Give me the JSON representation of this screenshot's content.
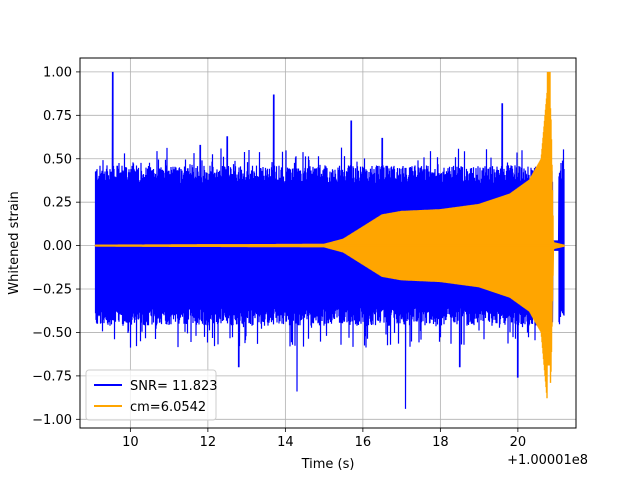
{
  "chart_data": {
    "type": "line",
    "title": "",
    "xlabel": "Time (s)",
    "ylabel": "Whitened strain",
    "x_offset_label": "+1.00001e8",
    "xlim": [
      8.7,
      21.5
    ],
    "ylim": [
      -1.05,
      1.08
    ],
    "x_ticks": [
      10,
      12,
      14,
      16,
      18,
      20
    ],
    "y_ticks": [
      -1.0,
      -0.75,
      -0.5,
      -0.25,
      0.0,
      0.25,
      0.5,
      0.75,
      1.0
    ],
    "x_tick_labels": [
      "10",
      "12",
      "14",
      "16",
      "18",
      "20"
    ],
    "y_tick_labels": [
      "−1.00",
      "−0.75",
      "−0.50",
      "−0.25",
      "0.00",
      "0.25",
      "0.50",
      "0.75",
      "1.00"
    ],
    "grid": true,
    "legend_position": "lower-left",
    "series": [
      {
        "name": "SNR= 11.823",
        "color": "#0000ff",
        "kind": "noise",
        "x_range": [
          9.1,
          21.2
        ],
        "typical_envelope": 0.42,
        "peaks": [
          {
            "x": 9.55,
            "y": 1.0
          },
          {
            "x": 9.15,
            "y": -0.45
          },
          {
            "x": 11.8,
            "y": 0.58
          },
          {
            "x": 12.5,
            "y": 0.63
          },
          {
            "x": 12.8,
            "y": -0.7
          },
          {
            "x": 13.7,
            "y": 0.87
          },
          {
            "x": 14.3,
            "y": -0.84
          },
          {
            "x": 15.7,
            "y": 0.72
          },
          {
            "x": 17.1,
            "y": -0.94
          },
          {
            "x": 19.6,
            "y": 0.82
          },
          {
            "x": 20.0,
            "y": -0.76
          },
          {
            "x": 16.5,
            "y": 0.62
          },
          {
            "x": 18.5,
            "y": -0.7
          }
        ],
        "gap": [
          20.9,
          21.05
        ]
      },
      {
        "name": "cm=6.0542",
        "color": "#ffa500",
        "kind": "chirp",
        "x_range": [
          9.1,
          21.2
        ],
        "envelope_points": [
          {
            "x": 9.1,
            "y": 0.005
          },
          {
            "x": 15.0,
            "y": 0.01
          },
          {
            "x": 15.5,
            "y": 0.04
          },
          {
            "x": 16.0,
            "y": 0.11
          },
          {
            "x": 16.5,
            "y": 0.18
          },
          {
            "x": 17.0,
            "y": 0.2
          },
          {
            "x": 18.0,
            "y": 0.21
          },
          {
            "x": 19.0,
            "y": 0.24
          },
          {
            "x": 19.8,
            "y": 0.3
          },
          {
            "x": 20.3,
            "y": 0.38
          },
          {
            "x": 20.6,
            "y": 0.5
          },
          {
            "x": 20.8,
            "y": 1.0
          },
          {
            "x": 20.86,
            "y": 0.7
          },
          {
            "x": 20.92,
            "y": 0.02
          },
          {
            "x": 21.2,
            "y": 0.005
          }
        ]
      }
    ]
  }
}
